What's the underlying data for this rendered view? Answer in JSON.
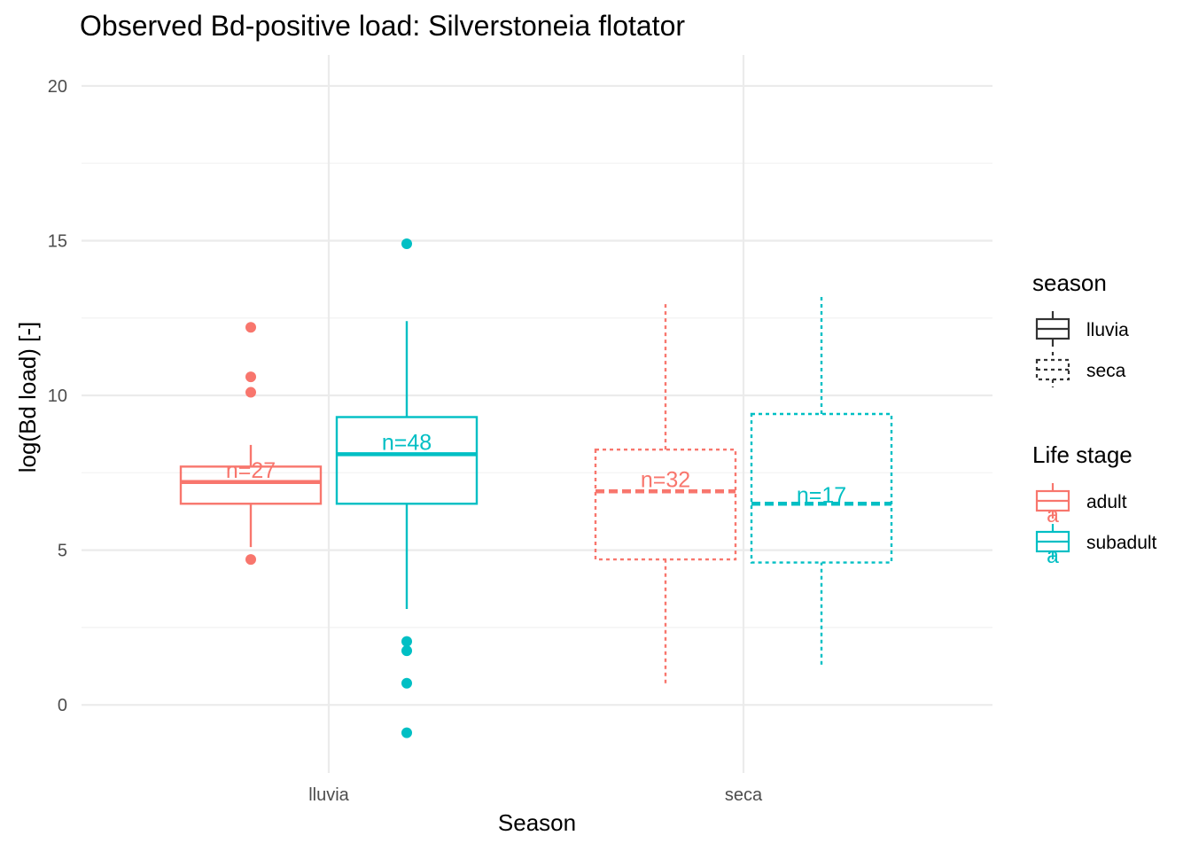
{
  "chart_data": {
    "type": "boxplot",
    "title": "Observed Bd-positive load: Silverstoneia flotator",
    "xlabel": "Season",
    "ylabel": "log(Bd load) [-]",
    "categories": [
      "lluvia",
      "seca"
    ],
    "ylim": [
      -2.2,
      21
    ],
    "yticks": [
      0,
      5,
      10,
      15,
      20
    ],
    "grid": true,
    "colors": {
      "adult": "#F8766D",
      "subadult": "#00BFC4",
      "neutral": "#333333"
    },
    "boxes": [
      {
        "season": "lluvia",
        "stage": "adult",
        "whisker_low": 5.1,
        "q1": 6.5,
        "median": 7.2,
        "q3": 7.7,
        "whisker_high": 8.4,
        "outliers": [
          4.7,
          10.1,
          10.6,
          12.2
        ],
        "n_label": "n=27",
        "n_y": 7.6
      },
      {
        "season": "lluvia",
        "stage": "subadult",
        "whisker_low": 3.1,
        "q1": 6.5,
        "median": 8.1,
        "q3": 9.3,
        "whisker_high": 12.4,
        "outliers": [
          -0.9,
          0.7,
          1.75,
          2.05,
          14.9
        ],
        "n_label": "n=48",
        "n_y": 8.5
      },
      {
        "season": "seca",
        "stage": "adult",
        "whisker_low": 0.7,
        "q1": 4.7,
        "median": 6.9,
        "q3": 8.25,
        "whisker_high": 13.0,
        "outliers": [],
        "n_label": "n=32",
        "n_y": 7.3
      },
      {
        "season": "seca",
        "stage": "subadult",
        "whisker_low": 1.3,
        "q1": 4.6,
        "median": 6.5,
        "q3": 9.4,
        "whisker_high": 13.2,
        "outliers": [],
        "n_label": "n=17",
        "n_y": 6.8
      }
    ],
    "legend": {
      "placement": "right",
      "season": {
        "title": "season",
        "items": [
          {
            "label": "lluvia",
            "linetype": "solid"
          },
          {
            "label": "seca",
            "linetype": "dotted"
          }
        ]
      },
      "stage": {
        "title": "Life stage",
        "items": [
          {
            "label": "adult",
            "key": "adult"
          },
          {
            "label": "subadult",
            "key": "subadult"
          }
        ],
        "key_glyph": "a"
      }
    }
  }
}
